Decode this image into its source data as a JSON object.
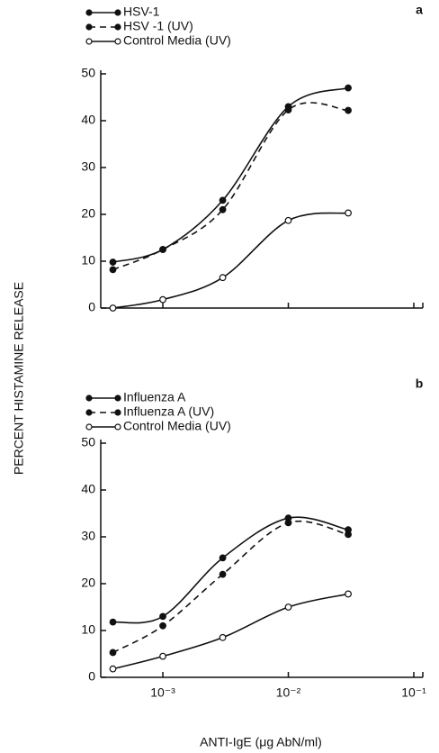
{
  "ylabel": "PERCENT HISTAMINE RELEASE",
  "xlabel": "ANTI-IgE (μg AbN/ml)",
  "chart_data": [
    {
      "type": "line",
      "panel": "a",
      "log_x": true,
      "x": [
        0.0004,
        0.001,
        0.003,
        0.01,
        0.03
      ],
      "xlim": [
        0.00032,
        0.1
      ],
      "xticks": [
        0.001,
        0.01,
        0.1
      ],
      "ylim": [
        0,
        50
      ],
      "yticks": [
        0,
        10,
        20,
        30,
        40,
        50
      ],
      "series": [
        {
          "name": "HSV-1",
          "color": "#111111",
          "dash": false,
          "marker": "filled",
          "values": [
            9.8,
            12.5,
            23,
            43,
            47
          ]
        },
        {
          "name": "HSV -1 (UV)",
          "color": "#111111",
          "dash": true,
          "marker": "filled",
          "values": [
            8.2,
            12.5,
            21,
            42.3,
            42.2
          ]
        },
        {
          "name": "Control Media (UV)",
          "color": "#111111",
          "dash": false,
          "marker": "open",
          "values": [
            0,
            1.8,
            6.5,
            18.7,
            20.3
          ]
        }
      ]
    },
    {
      "type": "line",
      "panel": "b",
      "log_x": true,
      "x": [
        0.0004,
        0.001,
        0.003,
        0.01,
        0.03
      ],
      "xlim": [
        0.00032,
        0.1
      ],
      "xticks": [
        {
          "value": 0.001,
          "label": "10⁻³"
        },
        {
          "value": 0.01,
          "label": "10⁻²"
        },
        {
          "value": 0.1,
          "label": "10⁻¹"
        }
      ],
      "ylim": [
        0,
        50
      ],
      "yticks": [
        0,
        10,
        20,
        30,
        40,
        50
      ],
      "series": [
        {
          "name": "Influenza A",
          "color": "#111111",
          "dash": false,
          "marker": "filled",
          "values": [
            11.8,
            13,
            25.5,
            34,
            31.5
          ]
        },
        {
          "name": "Influenza A (UV)",
          "color": "#111111",
          "dash": true,
          "marker": "filled",
          "values": [
            5.3,
            11,
            22,
            33,
            30.5
          ]
        },
        {
          "name": "Control Media (UV)",
          "color": "#111111",
          "dash": false,
          "marker": "open",
          "values": [
            1.8,
            4.5,
            8.5,
            15,
            17.8
          ]
        }
      ]
    }
  ]
}
